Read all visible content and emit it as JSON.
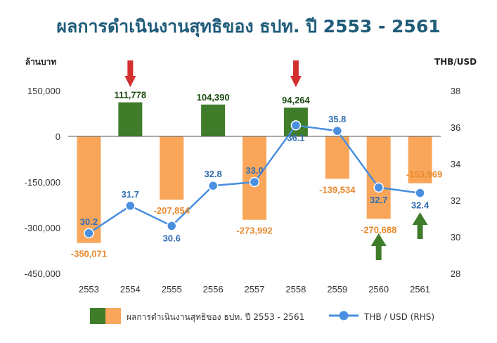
{
  "title": "ผลการดำเนินงานสุทธิของ ธปท. ปี 2553 - 2561",
  "chart_data": {
    "type": "bar",
    "title": "ผลการดำเนินงานสุทธิของ ธปท. ปี 2553 - 2561",
    "ylabel": "ล้านบาท",
    "y2label": "THB/USD",
    "categories": [
      "2553",
      "2554",
      "2555",
      "2556",
      "2557",
      "2558",
      "2559",
      "2560",
      "2561"
    ],
    "ylim": [
      -450000,
      150000
    ],
    "y_ticks": [
      150000,
      0,
      -150000,
      -300000,
      -450000
    ],
    "y_tick_labels": [
      "150,000",
      "0",
      "-150,000",
      "-300,000",
      "-450,000"
    ],
    "y2lim": [
      28,
      38
    ],
    "y2_ticks": [
      38,
      36,
      34,
      32,
      30,
      28
    ],
    "series": [
      {
        "name": "ผลการดำเนินงานสุทธิของ ธปท. ปี 2553 - 2561",
        "type": "bar",
        "values": [
          -350071,
          111778,
          -207854,
          104390,
          -273992,
          94264,
          -139534,
          -270688,
          -153969
        ],
        "labels": [
          "-350,071",
          "111,778",
          "-207,854",
          "104,390",
          "-273,992",
          "94,264",
          "-139,534",
          "-270,688",
          "-153,969"
        ],
        "positive_color": "#3f7d2a",
        "negative_color": "#f9a65a",
        "positive_label_color": "#1e4d14",
        "negative_label_color": "#e8892c"
      },
      {
        "name": "THB / USD (RHS)",
        "type": "line",
        "axis": "right",
        "values": [
          30.2,
          31.7,
          30.6,
          32.8,
          33.0,
          36.1,
          35.8,
          32.7,
          32.4
        ],
        "labels": [
          "30.2",
          "31.7",
          "30.6",
          "32.8",
          "33.0",
          "36.1",
          "35.8",
          "32.7",
          "32.4"
        ],
        "color": "#4a8fe0",
        "label_color": "#2f6db3"
      }
    ],
    "annotations": [
      {
        "type": "arrow-down",
        "category": "2554",
        "color": "#d32f2f"
      },
      {
        "type": "arrow-down",
        "category": "2558",
        "color": "#d32f2f"
      },
      {
        "type": "arrow-up",
        "category": "2560",
        "color": "#3f7d2a"
      },
      {
        "type": "arrow-up",
        "category": "2561",
        "color": "#3f7d2a"
      }
    ],
    "legend": {
      "position": "bottom"
    },
    "grid": false
  }
}
